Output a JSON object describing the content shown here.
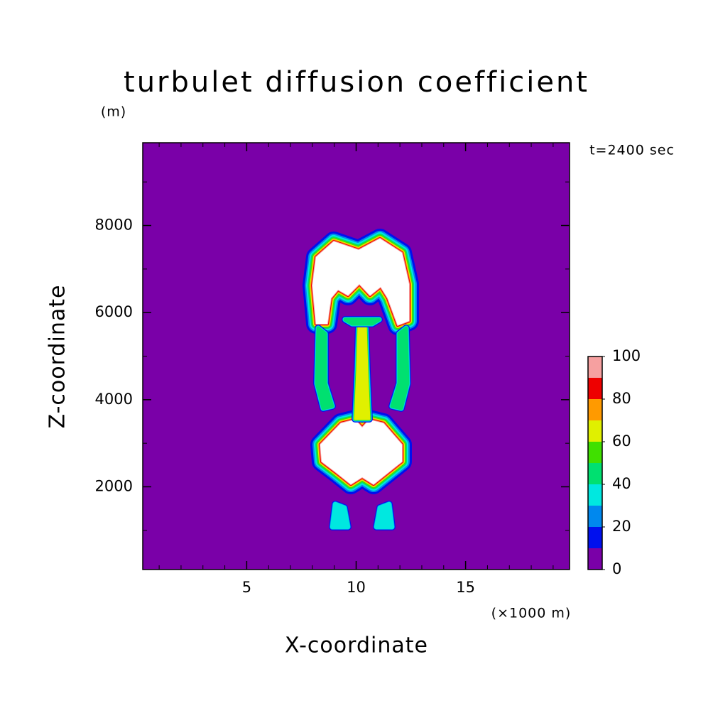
{
  "chart_data": {
    "type": "contour",
    "title": "turbulet diffusion coefficient",
    "xlabel": "X-coordinate",
    "ylabel": "Z-coordinate",
    "y_unit": "(m)",
    "x_unit": "(×1000 m)",
    "time_label": "t=2400 sec",
    "xlim": [
      0.25,
      19.75
    ],
    "ylim": [
      100,
      9900
    ],
    "xticks": [
      5,
      10,
      15
    ],
    "yticks": [
      2000,
      4000,
      6000,
      8000
    ],
    "xminorticks": [
      1,
      2,
      3,
      4,
      6,
      7,
      8,
      9,
      11,
      12,
      13,
      14,
      16,
      17,
      18,
      19
    ],
    "yminorticks": [
      1000,
      3000,
      5000,
      7000,
      9000
    ],
    "background_color": "#7a00a8",
    "over_color": "#ffffff",
    "colorbar": {
      "levels": [
        0,
        10,
        20,
        30,
        40,
        50,
        60,
        70,
        80,
        90,
        100
      ],
      "colors": [
        "#7a00a8",
        "#0010ee",
        "#0088ee",
        "#00e8e0",
        "#00e070",
        "#40e000",
        "#e0f000",
        "#ff9a00",
        "#ee0000",
        "#f6a0a0"
      ],
      "ticks": [
        0,
        20,
        40,
        60,
        80,
        100
      ]
    }
  }
}
